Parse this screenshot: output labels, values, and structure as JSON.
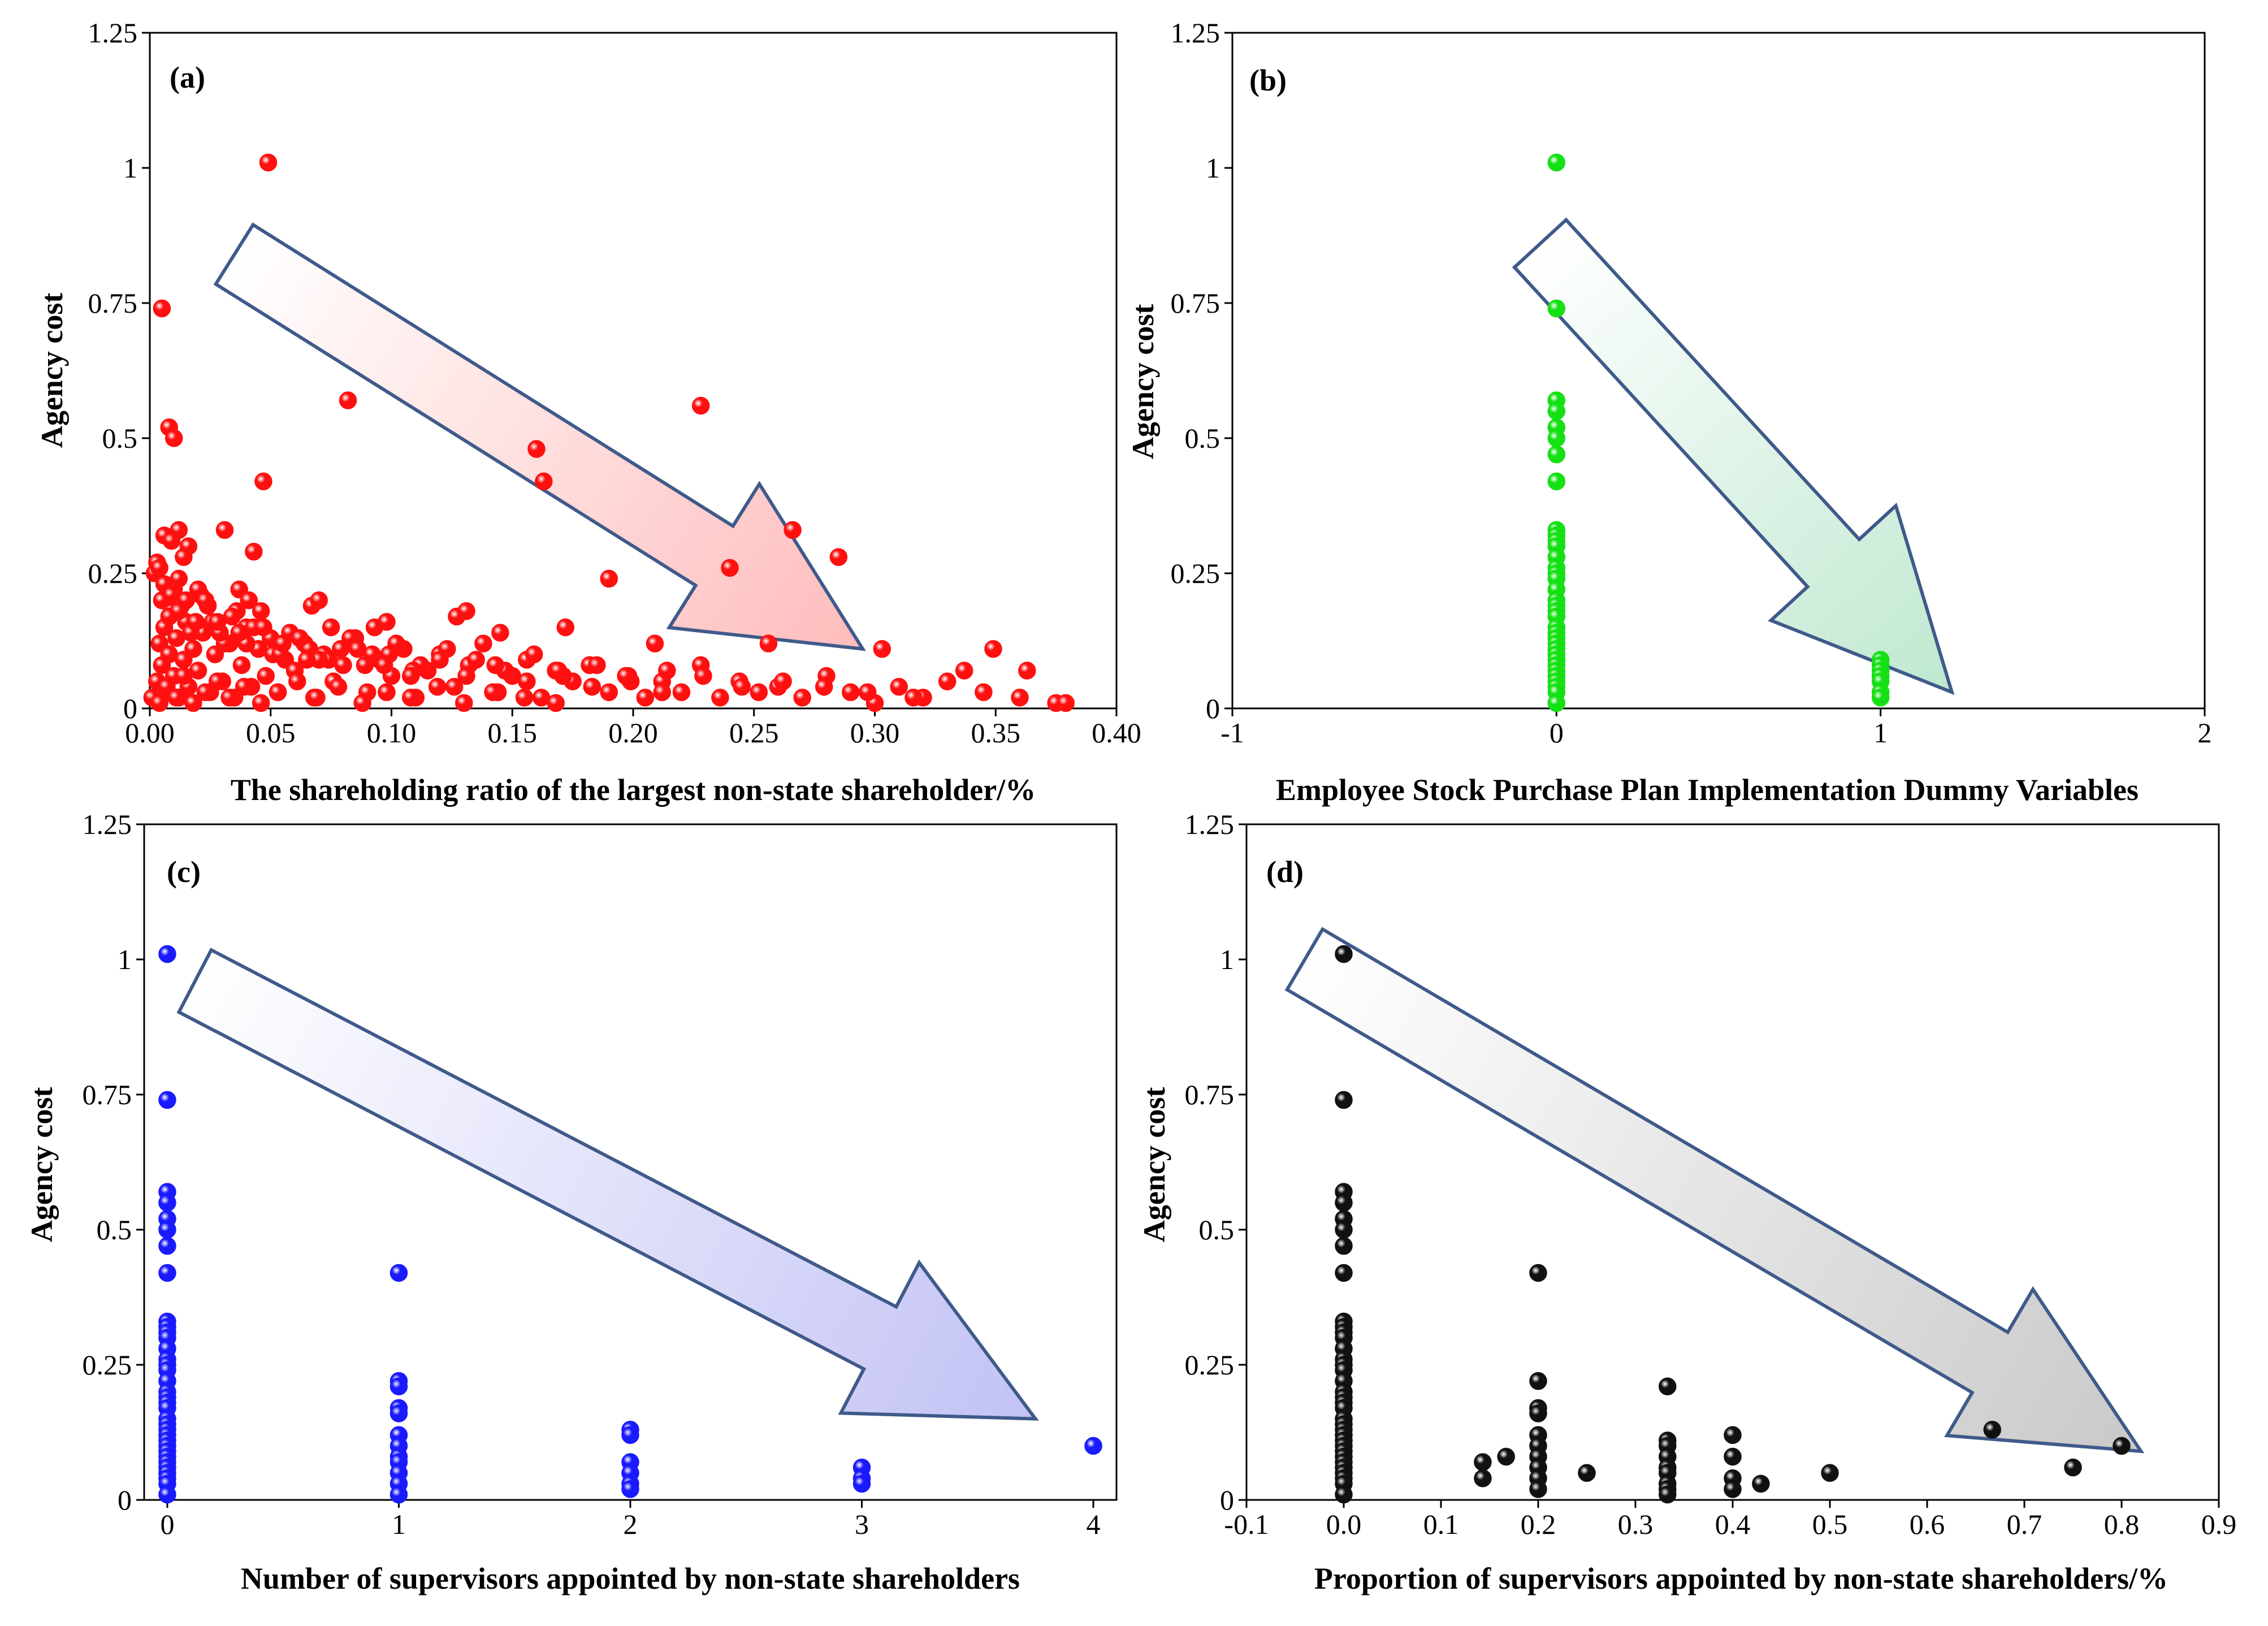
{
  "chart_data": [
    {
      "type": "scatter",
      "panel_label": "(a)",
      "xlabel": "The shareholding ratio of the largest non-state shareholder/%",
      "ylabel": "Agency cost",
      "xlim": [
        0,
        0.4
      ],
      "ylim": [
        0,
        1.25
      ],
      "x_ticks": [
        "0.00",
        "0.05",
        "0.10",
        "0.15",
        "0.20",
        "0.25",
        "0.30",
        "0.35",
        "0.40"
      ],
      "y_ticks": [
        "0",
        "0.25",
        "0.5",
        "0.75",
        "1",
        "1.25"
      ],
      "marker_color": "#ff1010",
      "arrow_color": "#ffbcbc",
      "arrow_from": [
        0.035,
        0.84
      ],
      "arrow_to": [
        0.295,
        0.11
      ],
      "x": [
        0.001,
        0.003,
        0.004,
        0.005,
        0.006,
        0.007,
        0.008,
        0.009,
        0.01,
        0.011,
        0.012,
        0.014,
        0.015,
        0.016,
        0.018,
        0.02,
        0.022,
        0.025,
        0.027,
        0.03,
        0.033,
        0.035,
        0.038,
        0.04,
        0.042,
        0.045,
        0.048,
        0.05,
        0.053,
        0.056,
        0.06,
        0.064,
        0.068,
        0.072,
        0.076,
        0.08,
        0.085,
        0.09,
        0.095,
        0.1,
        0.105,
        0.11,
        0.115,
        0.12,
        0.126,
        0.132,
        0.138,
        0.144,
        0.15,
        0.156,
        0.162,
        0.168,
        0.175,
        0.182,
        0.19,
        0.198,
        0.205,
        0.212,
        0.22,
        0.228,
        0.236,
        0.244,
        0.252,
        0.26,
        0.27,
        0.28,
        0.29,
        0.3,
        0.31,
        0.32,
        0.33,
        0.345,
        0.36,
        0.375,
        0.005,
        0.008,
        0.01,
        0.013,
        0.017,
        0.021,
        0.026,
        0.031,
        0.036,
        0.043,
        0.051,
        0.058,
        0.066,
        0.074,
        0.083,
        0.092,
        0.102,
        0.112,
        0.123,
        0.135,
        0.147,
        0.159,
        0.171,
        0.185,
        0.199,
        0.214,
        0.229,
        0.245,
        0.262,
        0.279,
        0.297,
        0.316,
        0.002,
        0.006,
        0.009,
        0.012,
        0.015,
        0.019,
        0.024,
        0.029,
        0.034,
        0.04,
        0.047,
        0.054,
        0.062,
        0.07,
        0.079,
        0.089,
        0.099,
        0.109,
        0.12,
        0.131,
        0.143,
        0.156,
        0.169,
        0.183,
        0.197,
        0.212,
        0.004,
        0.007,
        0.011,
        0.014,
        0.018,
        0.023,
        0.028,
        0.033,
        0.039,
        0.046,
        0.053,
        0.061,
        0.069,
        0.078,
        0.088,
        0.098,
        0.108,
        0.119,
        0.13,
        0.142,
        0.155,
        0.168,
        0.003,
        0.012,
        0.02,
        0.028,
        0.037,
        0.046,
        0.055,
        0.065,
        0.075,
        0.086,
        0.097,
        0.108,
        0.005,
        0.008,
        0.01,
        0.006,
        0.016,
        0.012,
        0.043,
        0.047,
        0.082,
        0.16,
        0.163,
        0.228,
        0.004,
        0.009,
        0.014,
        0.023,
        0.031,
        0.037,
        0.041,
        0.067,
        0.07,
        0.093,
        0.098,
        0.127,
        0.131,
        0.145,
        0.172,
        0.19,
        0.209,
        0.266,
        0.285,
        0.24,
        0.256,
        0.303,
        0.337,
        0.349,
        0.363,
        0.379
      ],
      "y": [
        0.02,
        0.05,
        0.12,
        0.08,
        0.15,
        0.03,
        0.1,
        0.18,
        0.06,
        0.13,
        0.02,
        0.09,
        0.16,
        0.04,
        0.11,
        0.07,
        0.14,
        0.03,
        0.1,
        0.05,
        0.12,
        0.02,
        0.08,
        0.15,
        0.04,
        0.11,
        0.06,
        0.13,
        0.03,
        0.09,
        0.07,
        0.12,
        0.02,
        0.1,
        0.05,
        0.08,
        0.13,
        0.03,
        0.09,
        0.06,
        0.11,
        0.02,
        0.07,
        0.1,
        0.04,
        0.08,
        0.12,
        0.03,
        0.06,
        0.09,
        0.02,
        0.07,
        0.05,
        0.08,
        0.03,
        0.06,
        0.02,
        0.05,
        0.03,
        0.08,
        0.02,
        0.05,
        0.03,
        0.04,
        0.02,
        0.06,
        0.03,
        0.01,
        0.04,
        0.02,
        0.05,
        0.03,
        0.02,
        0.01,
        0.2,
        0.17,
        0.22,
        0.19,
        0.14,
        0.21,
        0.16,
        0.12,
        0.18,
        0.15,
        0.1,
        0.14,
        0.11,
        0.09,
        0.13,
        0.1,
        0.12,
        0.08,
        0.11,
        0.09,
        0.07,
        0.1,
        0.06,
        0.08,
        0.05,
        0.07,
        0.06,
        0.04,
        0.05,
        0.04,
        0.03,
        0.02,
        0.25,
        0.23,
        0.21,
        0.18,
        0.2,
        0.16,
        0.19,
        0.14,
        0.17,
        0.12,
        0.15,
        0.1,
        0.13,
        0.09,
        0.11,
        0.08,
        0.1,
        0.07,
        0.09,
        0.06,
        0.08,
        0.05,
        0.07,
        0.04,
        0.06,
        0.03,
        0.01,
        0.04,
        0.02,
        0.06,
        0.01,
        0.03,
        0.05,
        0.02,
        0.04,
        0.01,
        0.03,
        0.05,
        0.02,
        0.04,
        0.01,
        0.03,
        0.02,
        0.04,
        0.01,
        0.03,
        0.02,
        0.01,
        0.27,
        0.24,
        0.22,
        0.16,
        0.14,
        0.18,
        0.12,
        0.09,
        0.15,
        0.11,
        0.08,
        0.06,
        0.74,
        0.52,
        0.5,
        0.32,
        0.3,
        0.33,
        0.29,
        0.42,
        0.57,
        0.48,
        0.42,
        0.56,
        0.26,
        0.31,
        0.28,
        0.2,
        0.33,
        0.22,
        0.2,
        0.19,
        0.2,
        0.15,
        0.16,
        0.17,
        0.18,
        0.14,
        0.15,
        0.24,
        0.12,
        0.33,
        0.28,
        0.26,
        0.12,
        0.11,
        0.07,
        0.11,
        0.07,
        0.01
      ],
      "extra_points": [
        [
          0.049,
          1.01
        ]
      ]
    },
    {
      "type": "scatter",
      "panel_label": "(b)",
      "xlabel": "Employee Stock Purchase Plan Implementation Dummy Variables",
      "ylabel": "Agency cost",
      "xlim": [
        -1,
        2
      ],
      "ylim": [
        0,
        1.25
      ],
      "x_ticks": [
        "-1",
        "0",
        "1",
        "2"
      ],
      "y_ticks": [
        "0",
        "0.25",
        "0.5",
        "0.75",
        "1",
        "1.25"
      ],
      "marker_color": "#14e014",
      "arrow_color": "#bfe8d0",
      "arrow_from": [
        -0.05,
        0.86
      ],
      "arrow_to": [
        1.22,
        0.03
      ],
      "x": [
        0,
        0,
        0,
        0,
        0,
        0,
        0,
        0,
        0,
        0,
        0,
        0,
        0,
        0,
        0,
        0,
        0,
        0,
        0,
        0,
        0,
        0,
        0,
        0,
        0,
        0,
        0,
        0,
        0,
        0,
        0,
        0,
        0,
        0,
        0,
        1,
        1,
        1,
        1,
        1,
        1,
        1
      ],
      "y": [
        1.01,
        0.74,
        0.57,
        0.55,
        0.52,
        0.5,
        0.47,
        0.42,
        0.33,
        0.32,
        0.31,
        0.3,
        0.28,
        0.26,
        0.25,
        0.24,
        0.22,
        0.2,
        0.19,
        0.18,
        0.17,
        0.15,
        0.14,
        0.13,
        0.12,
        0.11,
        0.1,
        0.09,
        0.08,
        0.07,
        0.06,
        0.05,
        0.04,
        0.03,
        0.01,
        0.09,
        0.08,
        0.07,
        0.06,
        0.05,
        0.03,
        0.02
      ]
    },
    {
      "type": "scatter",
      "panel_label": "(c)",
      "xlabel": "Number of supervisors appointed by non-state shareholders",
      "ylabel": "Agency cost",
      "xlim": [
        -0.1,
        4.1
      ],
      "ylim": [
        0,
        1.25
      ],
      "x_ticks": [
        "0",
        "1",
        "2",
        "3",
        "4"
      ],
      "x_tick_values": [
        0,
        1,
        2,
        3,
        4
      ],
      "y_ticks": [
        "0",
        "0.25",
        "0.5",
        "0.75",
        "1",
        "1.25"
      ],
      "marker_color": "#1a1aff",
      "arrow_color": "#c2c2f5",
      "arrow_from": [
        0.12,
        0.96
      ],
      "arrow_to": [
        3.75,
        0.15
      ],
      "x": [
        0,
        0,
        0,
        0,
        0,
        0,
        0,
        0,
        0,
        0,
        0,
        0,
        0,
        0,
        0,
        0,
        0,
        0,
        0,
        0,
        0,
        0,
        0,
        0,
        0,
        0,
        0,
        0,
        0,
        0,
        0,
        0,
        0,
        0,
        0,
        1,
        1,
        1,
        1,
        1,
        1,
        1,
        1,
        1,
        1,
        1,
        1,
        2,
        2,
        2,
        2,
        2,
        2,
        3,
        3,
        3,
        4
      ],
      "y": [
        1.01,
        0.74,
        0.57,
        0.55,
        0.52,
        0.5,
        0.47,
        0.42,
        0.33,
        0.32,
        0.31,
        0.3,
        0.28,
        0.26,
        0.25,
        0.24,
        0.22,
        0.2,
        0.19,
        0.18,
        0.17,
        0.15,
        0.14,
        0.13,
        0.12,
        0.11,
        0.1,
        0.09,
        0.08,
        0.07,
        0.06,
        0.05,
        0.04,
        0.03,
        0.01,
        0.42,
        0.22,
        0.21,
        0.17,
        0.16,
        0.12,
        0.1,
        0.08,
        0.07,
        0.05,
        0.03,
        0.01,
        0.13,
        0.12,
        0.07,
        0.05,
        0.03,
        0.02,
        0.06,
        0.04,
        0.03,
        0.1
      ]
    },
    {
      "type": "scatter",
      "panel_label": "(d)",
      "xlabel": "Proportion of supervisors appointed by non-state shareholders/%",
      "ylabel": "Agency cost",
      "xlim": [
        -0.1,
        0.9
      ],
      "ylim": [
        0,
        1.25
      ],
      "x_ticks": [
        "-0.1",
        "0.0",
        "0.1",
        "0.2",
        "0.3",
        "0.4",
        "0.5",
        "0.6",
        "0.7",
        "0.8",
        "0.9"
      ],
      "y_ticks": [
        "0",
        "0.25",
        "0.5",
        "0.75",
        "1",
        "1.25"
      ],
      "marker_color": "#111111",
      "arrow_color": "#c9c9c9",
      "arrow_from": [
        -0.04,
        1.0
      ],
      "arrow_to": [
        0.82,
        0.09
      ],
      "x": [
        0,
        0,
        0,
        0,
        0,
        0,
        0,
        0,
        0,
        0,
        0,
        0,
        0,
        0,
        0,
        0,
        0,
        0,
        0,
        0,
        0,
        0,
        0,
        0,
        0,
        0,
        0,
        0,
        0,
        0,
        0,
        0,
        0,
        0,
        0,
        0.143,
        0.143,
        0.167,
        0.2,
        0.2,
        0.2,
        0.2,
        0.2,
        0.2,
        0.2,
        0.2,
        0.2,
        0.2,
        0.25,
        0.333,
        0.333,
        0.333,
        0.333,
        0.333,
        0.333,
        0.333,
        0.333,
        0.333,
        0.4,
        0.4,
        0.4,
        0.4,
        0.429,
        0.5,
        0.667,
        0.75,
        0.8
      ],
      "y": [
        1.01,
        0.74,
        0.57,
        0.55,
        0.52,
        0.5,
        0.47,
        0.42,
        0.33,
        0.32,
        0.31,
        0.3,
        0.28,
        0.26,
        0.25,
        0.24,
        0.22,
        0.2,
        0.19,
        0.18,
        0.17,
        0.15,
        0.14,
        0.13,
        0.12,
        0.11,
        0.1,
        0.09,
        0.08,
        0.07,
        0.06,
        0.05,
        0.04,
        0.03,
        0.01,
        0.07,
        0.04,
        0.08,
        0.42,
        0.22,
        0.17,
        0.16,
        0.12,
        0.1,
        0.08,
        0.06,
        0.04,
        0.02,
        0.05,
        0.21,
        0.11,
        0.1,
        0.08,
        0.06,
        0.05,
        0.03,
        0.02,
        0.01,
        0.12,
        0.08,
        0.04,
        0.02,
        0.03,
        0.05,
        0.13,
        0.06,
        0.1
      ]
    }
  ]
}
